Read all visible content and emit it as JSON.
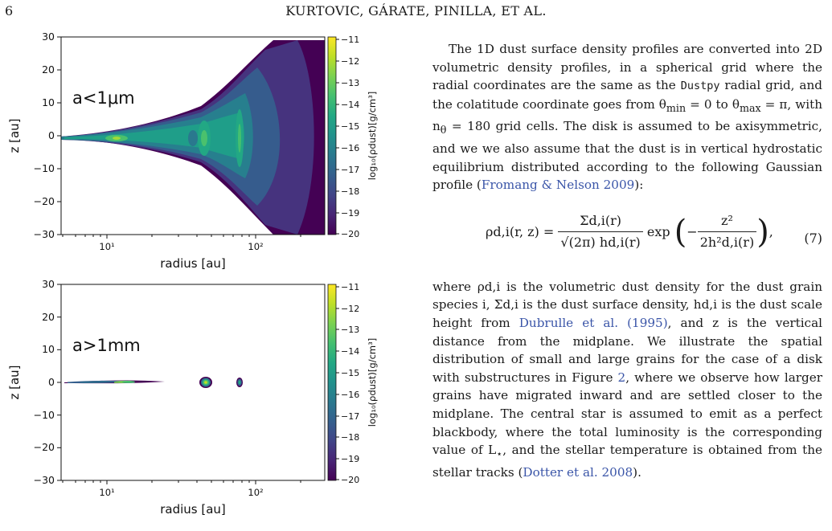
{
  "header": {
    "page_number": "6",
    "running_title": "KURTOVIC, GÁRATE, PINILLA, ET AL."
  },
  "figure": {
    "panels": [
      {
        "label": "a<1μm",
        "xlabel": "radius [au]",
        "ylabel": "z [au]",
        "yticks": [
          "30",
          "20",
          "10",
          "0",
          "−10",
          "−20",
          "−30"
        ],
        "xticks": [
          "10¹",
          "10²"
        ],
        "colorbar_ticks": [
          "−11",
          "−12",
          "−13",
          "−14",
          "−15",
          "−16",
          "−17",
          "−18",
          "−19",
          "−20"
        ],
        "colorbar_label": "log₁₀(ρdust)[g/cm³]"
      },
      {
        "label": "a>1mm",
        "xlabel": "radius [au]",
        "ylabel": "z [au]",
        "yticks": [
          "30",
          "20",
          "10",
          "0",
          "−10",
          "−20",
          "−30"
        ],
        "xticks": [
          "10¹",
          "10²"
        ],
        "colorbar_ticks": [
          "−11",
          "−12",
          "−13",
          "−14",
          "−15",
          "−16",
          "−17",
          "−18",
          "−19",
          "−20"
        ],
        "colorbar_label": "log₁₀(ρdust)[g/cm³]"
      }
    ],
    "colormap": [
      "#440154",
      "#482475",
      "#414487",
      "#355f8d",
      "#2a788e",
      "#21918c",
      "#22a884",
      "#44bf70",
      "#7ad151",
      "#bddf26",
      "#fde725"
    ]
  },
  "text": {
    "para1_a": "The 1D dust surface density profiles are converted into 2D volumetric density profiles, in a spherical grid where the radial coordinates are the same as the ",
    "para1_code": "Dustpy",
    "para1_b": " radial grid, and the colatitude coordinate goes from θ",
    "para1_min": "min",
    "para1_c": " = 0 to θ",
    "para1_max": "max",
    "para1_d": " = π, with n",
    "para1_theta": "θ",
    "para1_e": " = 180 grid cells. The disk is assumed to be axisymmetric, and we we also assume that the dust is in vertical hydrostatic equilibrium distributed according to the following Gaussian profile (",
    "para1_cite": "Fromang & Nelson 2009",
    "para1_f": "):",
    "eq_lhs": "ρd,i(r, z) =",
    "eq_num_top": "Σd,i(r)",
    "eq_num_bot": "√(2π) hd,i(r)",
    "eq_exp": "exp",
    "eq_inner_top": "z²",
    "eq_inner_bot": "2h²d,i(r)",
    "eq_number": "(7)",
    "para2_a": "where ρd,i is the volumetric dust density for the dust grain species i, Σd,i is the dust surface density, hd,i is the dust scale height from ",
    "para2_cite1": "Dubrulle et al. (1995)",
    "para2_b": ", and z is the vertical distance from the midplane. We illustrate the spatial distribution of small and large grains for the case of a disk with substructures in Figure ",
    "para2_fig": "2",
    "para2_c": ", where we observe how larger grains have migrated inward and are settled closer to the midplane. The central star is assumed to emit as a perfect blackbody, where the total luminosity is the corresponding value of L",
    "para2_star": "⋆",
    "para2_d": ", and the stellar temperature is obtained from the stellar tracks (",
    "para2_cite2": "Dotter et al. 2008",
    "para2_e": ")."
  }
}
